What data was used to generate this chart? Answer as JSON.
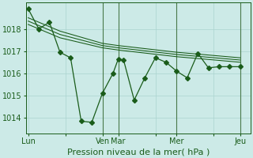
{
  "background_color": "#cceae7",
  "grid_color": "#aad4d0",
  "line_color": "#1a5c1a",
  "sep_color": "#4a7a4a",
  "ylabel_text": "Pression niveau de la mer( hPa )",
  "xtick_labels": [
    "Lun",
    "",
    "Ven",
    "Mar",
    "",
    "Mer",
    "",
    "Jeu"
  ],
  "xtick_positions": [
    0,
    3.5,
    7,
    8.5,
    12,
    14,
    17.5,
    20
  ],
  "ylim": [
    1013.3,
    1019.2
  ],
  "yticks": [
    1014,
    1015,
    1016,
    1017,
    1018
  ],
  "vlines": [
    7,
    8.5,
    14,
    20
  ],
  "xlim": [
    -0.2,
    21.0
  ],
  "line1_x": [
    0,
    1,
    2,
    3,
    4,
    5,
    6,
    7,
    8,
    8.5,
    9,
    10,
    11,
    12,
    13,
    14,
    15,
    16,
    17,
    18,
    19,
    20
  ],
  "line1_y": [
    1018.9,
    1018.0,
    1018.3,
    1016.95,
    1016.7,
    1013.85,
    1013.8,
    1015.1,
    1016.0,
    1016.65,
    1016.6,
    1014.8,
    1015.8,
    1016.7,
    1016.5,
    1016.1,
    1015.8,
    1016.9,
    1016.25,
    1016.3,
    1016.3,
    1016.3
  ],
  "line2_x": [
    0,
    3,
    7,
    8.5,
    14,
    20
  ],
  "line2_y": [
    1018.2,
    1017.6,
    1017.15,
    1017.05,
    1016.75,
    1016.5
  ],
  "line3_x": [
    0,
    3,
    7,
    8.5,
    14,
    20
  ],
  "line3_y": [
    1018.35,
    1017.75,
    1017.25,
    1017.15,
    1016.85,
    1016.6
  ],
  "line4_x": [
    0,
    3,
    7,
    8.5,
    14,
    20
  ],
  "line4_y": [
    1018.5,
    1017.9,
    1017.35,
    1017.25,
    1016.95,
    1016.7
  ],
  "marker_size": 3.0,
  "linewidth": 0.9,
  "tick_label_fontsize": 7,
  "xlabel_fontsize": 8
}
